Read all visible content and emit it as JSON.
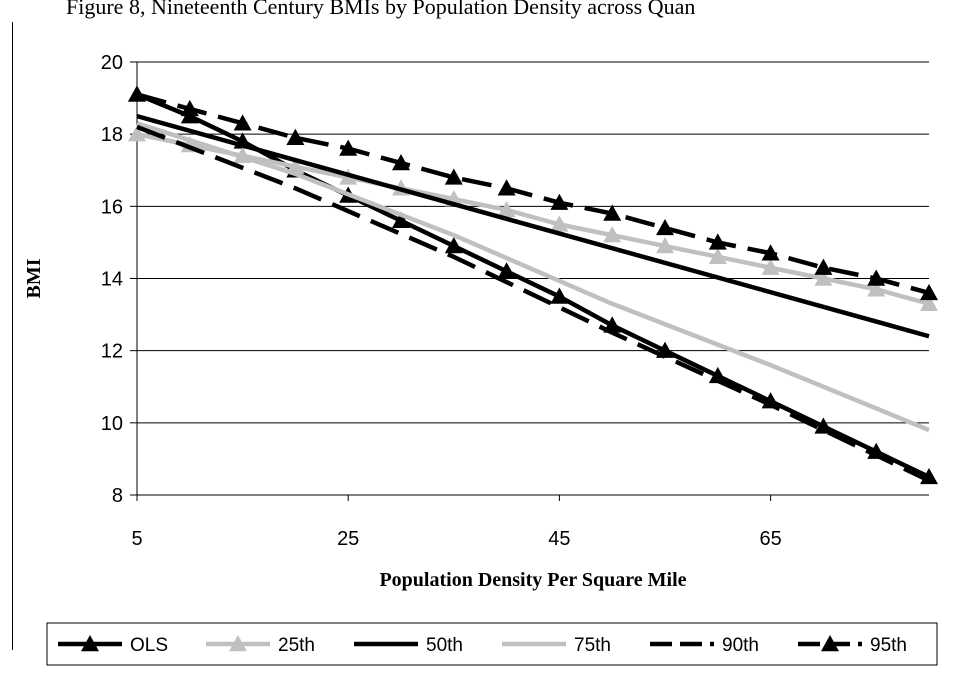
{
  "title": "Figure 8, Nineteenth Century BMIs by Population Density across Quan",
  "chart_data": {
    "type": "line",
    "xlabel": "Population Density Per Square Mile",
    "ylabel": "BMI",
    "xlim": [
      5,
      80
    ],
    "ylim": [
      8,
      20
    ],
    "xticks": [
      5,
      25,
      45,
      65
    ],
    "yticks": [
      8,
      10,
      12,
      14,
      16,
      18,
      20
    ],
    "grid": "horizontal",
    "legend_position": "bottom",
    "series": [
      {
        "name": "OLS",
        "color": "#000000",
        "dashed": false,
        "marker": "triangle",
        "x": [
          5,
          10,
          15,
          20,
          25,
          30,
          35,
          40,
          45,
          50,
          55,
          60,
          65,
          70,
          75,
          80
        ],
        "y": [
          19.1,
          18.5,
          17.8,
          17.0,
          16.3,
          15.6,
          14.9,
          14.2,
          13.5,
          12.7,
          12.0,
          11.3,
          10.6,
          9.9,
          9.2,
          8.5
        ]
      },
      {
        "name": "25th",
        "color": "#c0c0c0",
        "dashed": false,
        "marker": "triangle",
        "x": [
          5,
          10,
          15,
          20,
          25,
          30,
          35,
          40,
          45,
          50,
          55,
          60,
          65,
          70,
          75,
          80
        ],
        "y": [
          18.0,
          17.7,
          17.4,
          17.1,
          16.8,
          16.5,
          16.2,
          15.9,
          15.5,
          15.2,
          14.9,
          14.6,
          14.3,
          14.0,
          13.7,
          13.3
        ]
      },
      {
        "name": "50th",
        "color": "#000000",
        "dashed": false,
        "marker": "none",
        "x": [
          5,
          80
        ],
        "y": [
          18.5,
          12.4
        ]
      },
      {
        "name": "75th",
        "color": "#c0c0c0",
        "dashed": false,
        "marker": "none",
        "x": [
          5,
          20,
          35,
          50,
          65,
          80
        ],
        "y": [
          18.3,
          16.9,
          15.2,
          13.3,
          11.6,
          9.8
        ]
      },
      {
        "name": "90th",
        "color": "#000000",
        "dashed": true,
        "marker": "none",
        "x": [
          5,
          20,
          35,
          50,
          65,
          80
        ],
        "y": [
          18.2,
          16.5,
          14.6,
          12.5,
          10.5,
          8.4
        ]
      },
      {
        "name": "95th",
        "color": "#000000",
        "dashed": true,
        "marker": "triangle",
        "x": [
          5,
          10,
          15,
          20,
          25,
          30,
          35,
          40,
          45,
          50,
          55,
          60,
          65,
          70,
          75,
          80
        ],
        "y": [
          19.1,
          18.7,
          18.3,
          17.9,
          17.6,
          17.2,
          16.8,
          16.5,
          16.1,
          15.8,
          15.4,
          15.0,
          14.7,
          14.3,
          14.0,
          13.6
        ]
      }
    ]
  }
}
